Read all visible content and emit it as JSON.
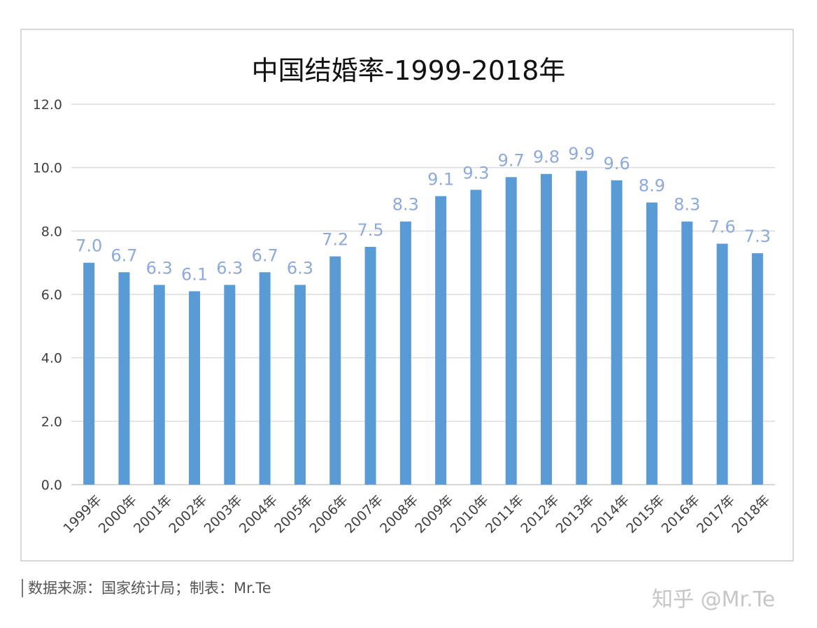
{
  "chart_data": {
    "type": "bar",
    "title": "中国结婚率-1999-2018年",
    "xlabel": "",
    "ylabel": "",
    "ylim": [
      0,
      12
    ],
    "yticks": [
      "0.0",
      "2.0",
      "4.0",
      "6.0",
      "8.0",
      "10.0",
      "12.0"
    ],
    "grid": true,
    "categories": [
      "1999年",
      "2000年",
      "2001年",
      "2002年",
      "2003年",
      "2004年",
      "2005年",
      "2006年",
      "2007年",
      "2008年",
      "2009年",
      "2010年",
      "2011年",
      "2012年",
      "2013年",
      "2014年",
      "2015年",
      "2016年",
      "2017年",
      "2018年"
    ],
    "values": [
      7.0,
      6.7,
      6.3,
      6.1,
      6.3,
      6.7,
      6.3,
      7.2,
      7.5,
      8.3,
      9.1,
      9.3,
      9.7,
      9.8,
      9.9,
      9.6,
      8.9,
      8.3,
      7.6,
      7.3
    ],
    "data_labels": [
      "7.0",
      "6.7",
      "6.3",
      "6.1",
      "6.3",
      "6.7",
      "6.3",
      "7.2",
      "7.5",
      "8.3",
      "9.1",
      "9.3",
      "9.7",
      "9.8",
      "9.9",
      "9.6",
      "8.9",
      "8.3",
      "7.6",
      "7.3"
    ],
    "bar_color": "#5b9bd5",
    "label_color": "#8eaadb"
  },
  "footer": {
    "source": "数据来源：国家统计局；制表：Mr.Te",
    "watermark": "知乎 @Mr.Te"
  }
}
